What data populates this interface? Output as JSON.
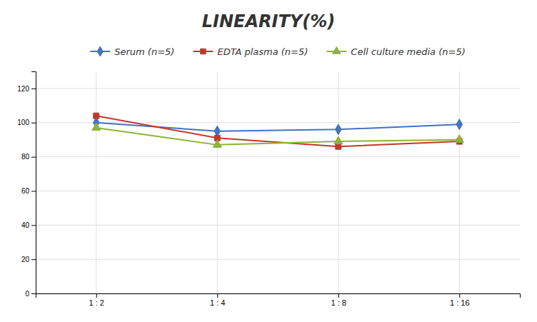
{
  "chart_data": {
    "type": "line",
    "title": "LINEARITY(%)",
    "categories": [
      "1 : 2",
      "1 : 4",
      "1 : 8",
      "1 : 16"
    ],
    "series": [
      {
        "name": "Serum (n=5)",
        "color": "#4472C4",
        "marker": "diamond",
        "values": [
          100,
          95,
          96,
          99
        ]
      },
      {
        "name": "EDTA plasma (n=5)",
        "color": "#C0392B",
        "marker": "square",
        "values": [
          104,
          91,
          86,
          89
        ]
      },
      {
        "name": "Cell culture media (n=5)",
        "color": "#8DB33A",
        "marker": "triangle",
        "values": [
          97,
          87,
          89,
          90
        ]
      }
    ],
    "ylim": [
      0,
      130
    ],
    "yticks": [
      0,
      20,
      40,
      60,
      80,
      100,
      120
    ],
    "grid": true,
    "legend": "top"
  }
}
